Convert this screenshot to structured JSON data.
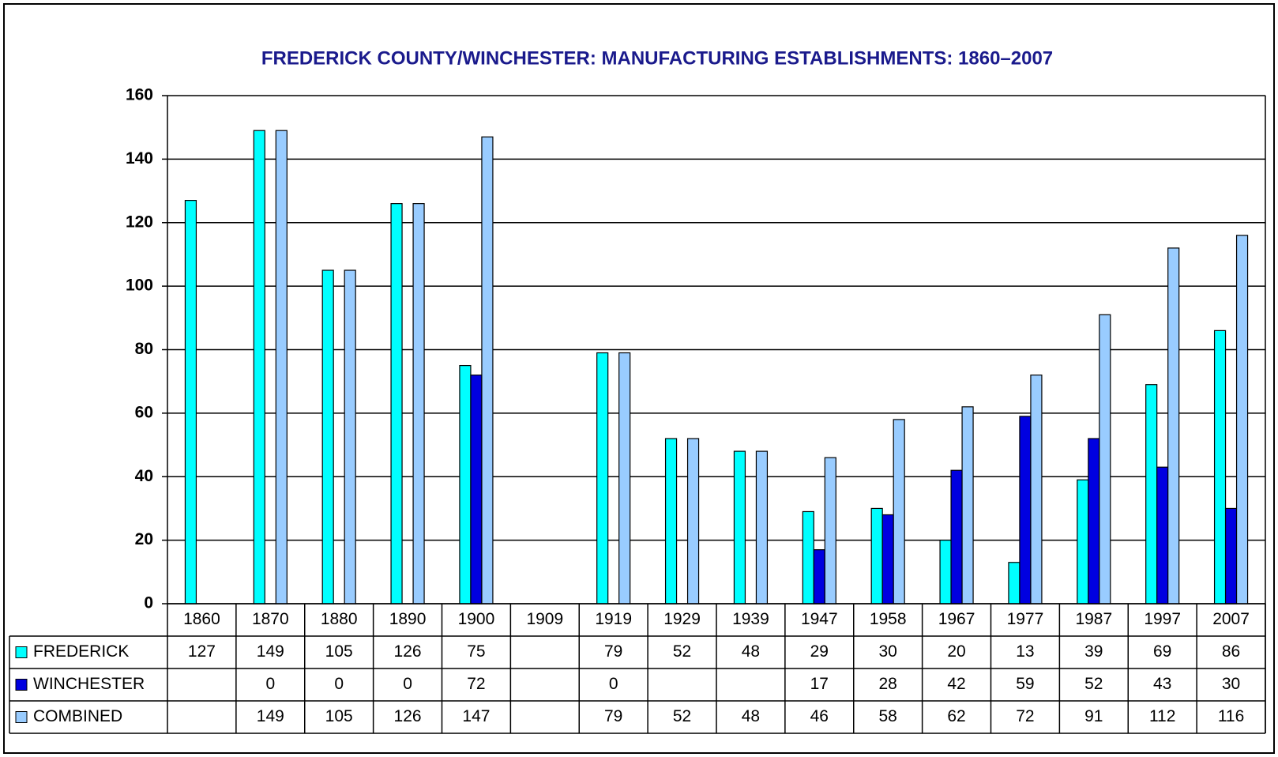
{
  "chart_data": {
    "type": "bar",
    "title": "FREDERICK COUNTY/WINCHESTER: MANUFACTURING ESTABLISHMENTS: 1860–2007",
    "categories": [
      "1860",
      "1870",
      "1880",
      "1890",
      "1900",
      "1909",
      "1919",
      "1929",
      "1939",
      "1947",
      "1958",
      "1967",
      "1977",
      "1987",
      "1997",
      "2007"
    ],
    "series": [
      {
        "name": "FREDERICK",
        "color": "#00ffff",
        "values": [
          127,
          149,
          105,
          126,
          75,
          null,
          79,
          52,
          48,
          29,
          30,
          20,
          13,
          39,
          69,
          86
        ]
      },
      {
        "name": "WINCHESTER",
        "color": "#0000e0",
        "values": [
          null,
          0,
          0,
          0,
          72,
          null,
          0,
          null,
          null,
          17,
          28,
          42,
          59,
          52,
          43,
          30
        ]
      },
      {
        "name": "COMBINED",
        "color": "#99ccff",
        "values": [
          null,
          149,
          105,
          126,
          147,
          null,
          79,
          52,
          48,
          46,
          58,
          62,
          72,
          91,
          112,
          116
        ]
      }
    ],
    "ylim": [
      0,
      160
    ],
    "yticks": [
      0,
      20,
      40,
      60,
      80,
      100,
      120,
      140,
      160
    ],
    "grid": true
  }
}
